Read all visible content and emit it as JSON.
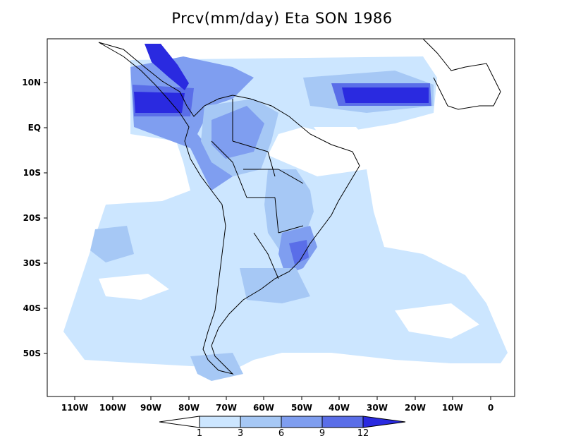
{
  "title": "Prcv(mm/day) Eta SON 1986",
  "lat_labels": [
    "10N",
    "EQ",
    "10S",
    "20S",
    "30S",
    "40S",
    "50S"
  ],
  "lon_labels": [
    "110W",
    "100W",
    "90W",
    "80W",
    "70W",
    "60W",
    "50W",
    "40W",
    "30W",
    "20W",
    "10W",
    "0"
  ],
  "colorbar": {
    "levels": [
      "1",
      "3",
      "6",
      "9",
      "12"
    ],
    "colors": [
      "#ffffff",
      "#cce6ff",
      "#a6c8f5",
      "#7f9ef0",
      "#5a6ee8",
      "#2a2ae0"
    ]
  }
}
